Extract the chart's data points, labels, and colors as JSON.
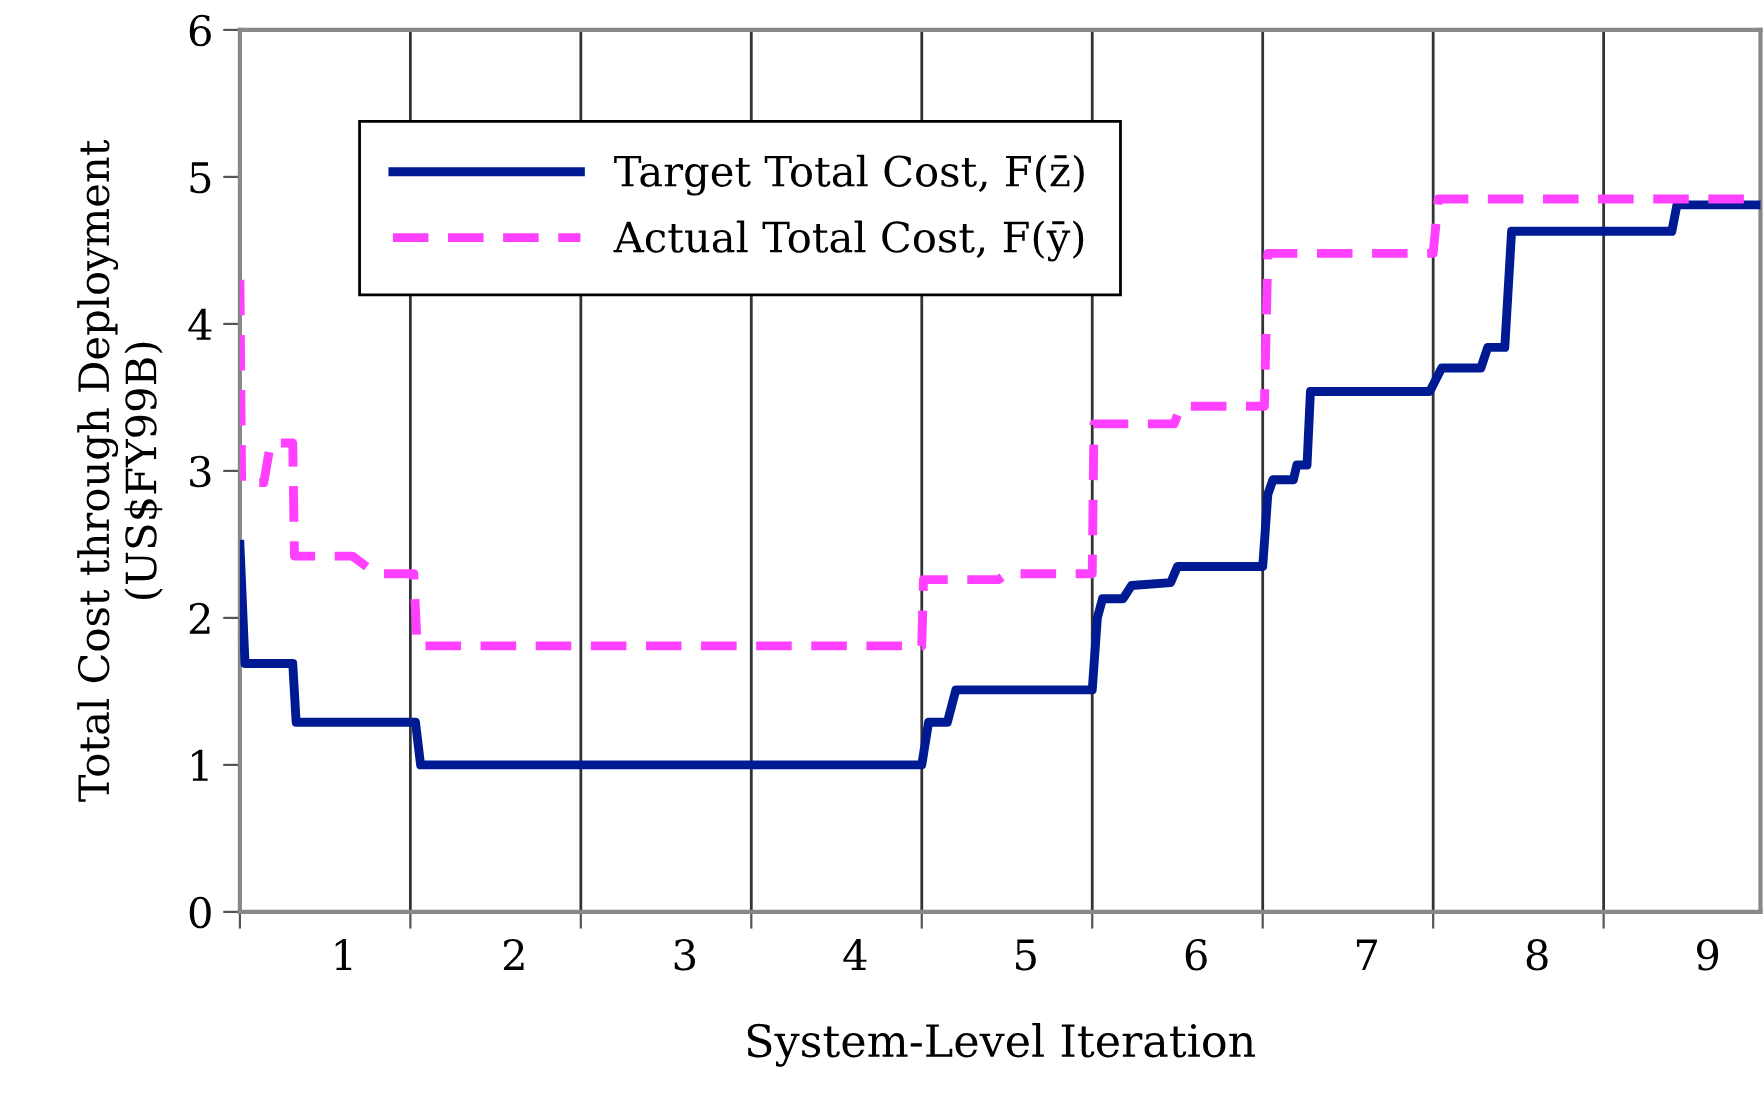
{
  "chart_data": {
    "type": "line",
    "xlabel": "System-Level Iteration",
    "ylabel": "Total Cost through Deployment\n(US$FY99B)",
    "xlim": [
      0,
      8.92
    ],
    "ylim": [
      0,
      6
    ],
    "xticks": [
      {
        "value": 0,
        "label": null
      },
      {
        "value": 1,
        "label": null
      },
      {
        "value": 2,
        "label": null
      },
      {
        "value": 3,
        "label": null
      },
      {
        "value": 4,
        "label": null
      },
      {
        "value": 5,
        "label": null
      },
      {
        "value": 6,
        "label": null
      },
      {
        "value": 7,
        "label": null
      },
      {
        "value": 8,
        "label": null
      },
      {
        "value": 0.61,
        "label": "1"
      },
      {
        "value": 1.61,
        "label": "2"
      },
      {
        "value": 2.61,
        "label": "3"
      },
      {
        "value": 3.61,
        "label": "4"
      },
      {
        "value": 4.61,
        "label": "5"
      },
      {
        "value": 5.61,
        "label": "6"
      },
      {
        "value": 6.61,
        "label": "7"
      },
      {
        "value": 7.61,
        "label": "8"
      },
      {
        "value": 8.61,
        "label": "9"
      }
    ],
    "yticks": [
      0,
      1,
      2,
      3,
      4,
      5,
      6
    ],
    "grid": "x",
    "legend": "top left",
    "series": [
      {
        "name": "Target Total Cost, F(z̄)",
        "color": "#001a94",
        "line_style": "solid",
        "x": [
          0,
          0.03,
          0.31,
          0.33,
          1.03,
          1.06,
          4.0,
          4.04,
          4.15,
          4.2,
          5.0,
          5.03,
          5.06,
          5.18,
          5.23,
          5.46,
          5.5,
          6.0,
          6.03,
          6.06,
          6.18,
          6.2,
          6.26,
          6.28,
          6.98,
          7.05,
          7.28,
          7.32,
          7.42,
          7.46,
          8.4,
          8.43,
          8.92
        ],
        "values": [
          2.5,
          1.69,
          1.69,
          1.29,
          1.29,
          1.0,
          1.0,
          1.29,
          1.29,
          1.51,
          1.51,
          2.0,
          2.13,
          2.13,
          2.22,
          2.24,
          2.35,
          2.35,
          2.84,
          2.94,
          2.94,
          3.04,
          3.04,
          3.54,
          3.54,
          3.7,
          3.7,
          3.84,
          3.84,
          4.63,
          4.63,
          4.81,
          4.81
        ]
      },
      {
        "name": "Actual Total Cost, F(ȳ)",
        "color": "#ff40ff",
        "line_style": "dashed",
        "x": [
          0,
          0.01,
          0.14,
          0.18,
          0.31,
          0.32,
          0.66,
          0.8,
          1.02,
          1.04,
          4.0,
          4.01,
          4.45,
          4.5,
          5.0,
          5.01,
          5.48,
          5.52,
          6.01,
          6.03,
          7.0,
          7.03,
          8.92
        ],
        "values": [
          4.3,
          2.92,
          2.92,
          3.19,
          3.19,
          2.42,
          2.42,
          2.3,
          2.3,
          1.81,
          1.81,
          2.26,
          2.26,
          2.3,
          2.3,
          3.32,
          3.32,
          3.44,
          3.44,
          4.48,
          4.48,
          4.85,
          4.85
        ]
      }
    ]
  }
}
